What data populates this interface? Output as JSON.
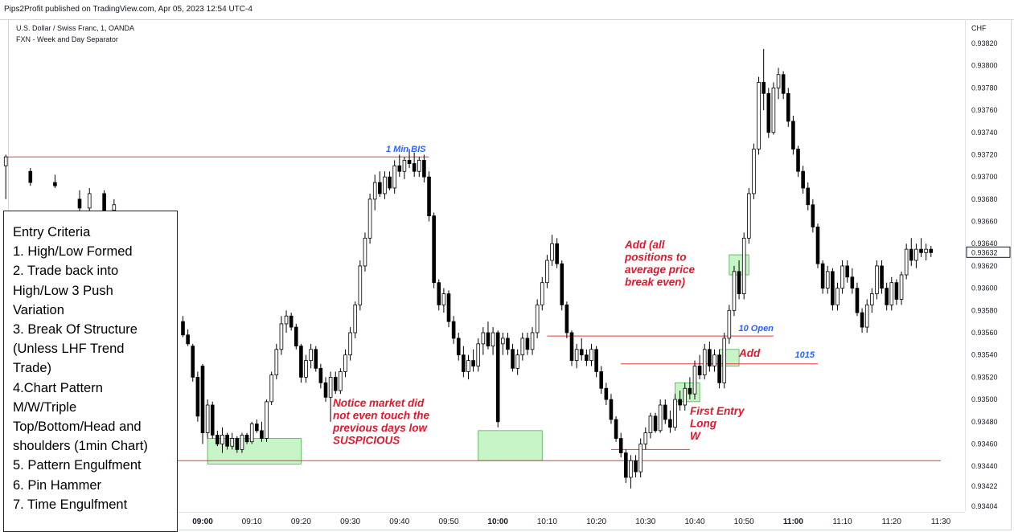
{
  "header": {
    "publisher_text": "Pips2Profit published on TradingView.com, Apr 05, 2023 12:54 UTC-4"
  },
  "chart_info": {
    "symbol_line": "U.S. Dollar / Swiss Franc, 1, OANDA",
    "indicator_line": "FXN - Week and Day Separator"
  },
  "entry_criteria": {
    "lines": [
      "Entry Criteria",
      "1. High/Low Formed",
      "2. Trade back into",
      "High/Low 3 Push",
      "Variation",
      "3. Break Of Structure",
      "(Unless LHF Trend",
      "Trade)",
      "4.Chart Pattern",
      "M/W/Triple",
      "Top/Bottom/Head and",
      "shoulders (1min Chart)",
      "5. Pattern Engulfment",
      "6. Pin Hammer",
      "7. Time Engulfment"
    ]
  },
  "colors": {
    "bull_body": "#ffffff",
    "bear_body": "#000000",
    "wick": "#000000",
    "level_line": "#e53935",
    "zone_fill": "#c8f5c8",
    "zone_border": "#4caf50",
    "annotation_red": "#e0182d",
    "annotation_blue": "#2962ff",
    "price_tag_border": "#131722"
  },
  "chart_data": {
    "type": "candlestick",
    "symbol": "U.S. Dollar / Swiss Franc, 1, OANDA",
    "currency_label": "CHF",
    "price_axis": {
      "ticks": [
        "0.93820",
        "0.93800",
        "0.93780",
        "0.93760",
        "0.93740",
        "0.93720",
        "0.93700",
        "0.93680",
        "0.93660",
        "0.93640",
        "0.93620",
        "0.93600",
        "0.93580",
        "0.93560",
        "0.93540",
        "0.93520",
        "0.93500",
        "0.93480",
        "0.93460",
        "0.93440",
        "0.93422",
        "0.93404"
      ],
      "last_price_label": "0.93632",
      "last_price": 0.93632
    },
    "time_axis": {
      "ticks": [
        "09:00",
        "09:10",
        "09:20",
        "09:30",
        "09:40",
        "09:50",
        "10:00",
        "10:10",
        "10:20",
        "10:30",
        "10:40",
        "10:50",
        "11:00",
        "11:10",
        "11:20",
        "11:30"
      ],
      "bold_ticks": [
        "09:00",
        "10:00",
        "11:00"
      ],
      "first_label_minute": 540,
      "last_label_minute": 690
    },
    "candles": [
      [
        500,
        0.9371,
        0.9372,
        0.9368,
        0.93718
      ],
      [
        505,
        0.93705,
        0.93708,
        0.93692,
        0.93695
      ],
      [
        510,
        0.93695,
        0.93702,
        0.9369,
        0.93692
      ],
      [
        515,
        0.9368,
        0.93688,
        0.93668,
        0.93672
      ],
      [
        517,
        0.93672,
        0.9369,
        0.93668,
        0.93685
      ],
      [
        520,
        0.93685,
        0.93688,
        0.93665,
        0.93668
      ],
      [
        522,
        0.9367,
        0.9368,
        0.9366,
        0.93675
      ],
      [
        530,
        0.93585,
        0.9359,
        0.93565,
        0.9357
      ],
      [
        531,
        0.9357,
        0.93578,
        0.9356,
        0.93565
      ],
      [
        532,
        0.93565,
        0.93572,
        0.9356,
        0.93565
      ],
      [
        534,
        0.9357,
        0.93575,
        0.93558,
        0.9356
      ],
      [
        536,
        0.9357,
        0.93575,
        0.93556,
        0.93558
      ],
      [
        537,
        0.93558,
        0.93563,
        0.93548,
        0.9355
      ],
      [
        538,
        0.93548,
        0.9355,
        0.93516,
        0.9352
      ],
      [
        539,
        0.9352,
        0.93525,
        0.9348,
        0.93485
      ],
      [
        540,
        0.9353,
        0.93532,
        0.9346,
        0.9347
      ],
      [
        541,
        0.9347,
        0.935,
        0.93465,
        0.93495
      ],
      [
        542,
        0.93495,
        0.93498,
        0.93465,
        0.93468
      ],
      [
        543,
        0.93468,
        0.93472,
        0.93458,
        0.9346
      ],
      [
        544,
        0.9346,
        0.93475,
        0.93452,
        0.93468
      ],
      [
        545,
        0.93468,
        0.9347,
        0.93455,
        0.93458
      ],
      [
        546,
        0.93458,
        0.9347,
        0.93455,
        0.93465
      ],
      [
        547,
        0.93465,
        0.93467,
        0.93452,
        0.93455
      ],
      [
        548,
        0.93455,
        0.9347,
        0.93452,
        0.93468
      ],
      [
        549,
        0.93468,
        0.9347,
        0.9346,
        0.93462
      ],
      [
        550,
        0.93462,
        0.9348,
        0.9346,
        0.93478
      ],
      [
        551,
        0.93478,
        0.93482,
        0.9347,
        0.93472
      ],
      [
        552,
        0.93472,
        0.9348,
        0.93462,
        0.93465
      ],
      [
        553,
        0.93465,
        0.935,
        0.93462,
        0.93498
      ],
      [
        554,
        0.93498,
        0.93525,
        0.93495,
        0.93522
      ],
      [
        555,
        0.93522,
        0.9355,
        0.93518,
        0.93545
      ],
      [
        556,
        0.93545,
        0.93575,
        0.9354,
        0.93568
      ],
      [
        557,
        0.93568,
        0.9358,
        0.9356,
        0.93575
      ],
      [
        558,
        0.93575,
        0.93578,
        0.93562,
        0.93565
      ],
      [
        559,
        0.93565,
        0.93568,
        0.93545,
        0.93548
      ],
      [
        560,
        0.93548,
        0.9355,
        0.93515,
        0.9352
      ],
      [
        561,
        0.9352,
        0.9354,
        0.93515,
        0.93535
      ],
      [
        562,
        0.93535,
        0.9355,
        0.93528,
        0.93545
      ],
      [
        563,
        0.93545,
        0.93548,
        0.93525,
        0.93528
      ],
      [
        564,
        0.93528,
        0.93532,
        0.9351,
        0.93515
      ],
      [
        565,
        0.93515,
        0.9352,
        0.93498,
        0.93502
      ],
      [
        566,
        0.93502,
        0.93525,
        0.9348,
        0.9352
      ],
      [
        567,
        0.9352,
        0.93525,
        0.93505,
        0.93508
      ],
      [
        568,
        0.93508,
        0.93528,
        0.93505,
        0.93525
      ],
      [
        569,
        0.93525,
        0.93545,
        0.9352,
        0.9354
      ],
      [
        570,
        0.9354,
        0.93565,
        0.93535,
        0.9356
      ],
      [
        571,
        0.9356,
        0.93588,
        0.93555,
        0.93585
      ],
      [
        572,
        0.93585,
        0.93625,
        0.9358,
        0.9362
      ],
      [
        573,
        0.9362,
        0.9365,
        0.93615,
        0.93645
      ],
      [
        574,
        0.93645,
        0.93685,
        0.9364,
        0.9368
      ],
      [
        575,
        0.9368,
        0.93702,
        0.9367,
        0.93695
      ],
      [
        576,
        0.93695,
        0.93705,
        0.93682,
        0.93685
      ],
      [
        577,
        0.93685,
        0.93705,
        0.9368,
        0.937
      ],
      [
        578,
        0.937,
        0.93705,
        0.93688,
        0.9369
      ],
      [
        579,
        0.9369,
        0.93715,
        0.93685,
        0.9371
      ],
      [
        580,
        0.9371,
        0.9372,
        0.937,
        0.93705
      ],
      [
        581,
        0.93705,
        0.93718,
        0.93698,
        0.93715
      ],
      [
        582,
        0.93715,
        0.93725,
        0.93708,
        0.93712
      ],
      [
        583,
        0.93712,
        0.93722,
        0.937,
        0.93705
      ],
      [
        584,
        0.93705,
        0.93718,
        0.937,
        0.93715
      ],
      [
        585,
        0.93715,
        0.9372,
        0.93695,
        0.937
      ],
      [
        586,
        0.937,
        0.93705,
        0.9366,
        0.93665
      ],
      [
        587,
        0.93665,
        0.93668,
        0.936,
        0.93605
      ],
      [
        588,
        0.93605,
        0.93608,
        0.9358,
        0.93585
      ],
      [
        589,
        0.93585,
        0.936,
        0.93578,
        0.93595
      ],
      [
        590,
        0.93595,
        0.93598,
        0.93565,
        0.9357
      ],
      [
        591,
        0.9357,
        0.93575,
        0.9355,
        0.93555
      ],
      [
        592,
        0.93555,
        0.9356,
        0.93535,
        0.9354
      ],
      [
        593,
        0.9354,
        0.93548,
        0.9352,
        0.93525
      ],
      [
        594,
        0.93525,
        0.9354,
        0.93518,
        0.93535
      ],
      [
        595,
        0.93535,
        0.93545,
        0.93525,
        0.9353
      ],
      [
        596,
        0.9353,
        0.93555,
        0.93525,
        0.9355
      ],
      [
        597,
        0.9355,
        0.93565,
        0.9354,
        0.9356
      ],
      [
        598,
        0.9356,
        0.9357,
        0.93545,
        0.93548
      ],
      [
        599,
        0.93548,
        0.93565,
        0.9354,
        0.9356
      ],
      [
        600,
        0.9356,
        0.93562,
        0.93475,
        0.9348
      ],
      [
        601,
        0.9355,
        0.9356,
        0.9354,
        0.93555
      ],
      [
        602,
        0.93555,
        0.9356,
        0.9354,
        0.93545
      ],
      [
        603,
        0.93545,
        0.9355,
        0.93525,
        0.93528
      ],
      [
        604,
        0.93528,
        0.93545,
        0.93522,
        0.9354
      ],
      [
        605,
        0.9354,
        0.9356,
        0.93535,
        0.93555
      ],
      [
        606,
        0.93555,
        0.9356,
        0.9354,
        0.93545
      ],
      [
        607,
        0.93545,
        0.93565,
        0.9354,
        0.9356
      ],
      [
        608,
        0.9356,
        0.9359,
        0.93555,
        0.93585
      ],
      [
        609,
        0.93585,
        0.9361,
        0.9358,
        0.93605
      ],
      [
        610,
        0.93605,
        0.9363,
        0.936,
        0.93625
      ],
      [
        611,
        0.93625,
        0.93648,
        0.9362,
        0.9364
      ],
      [
        612,
        0.9364,
        0.93645,
        0.93618,
        0.93622
      ],
      [
        613,
        0.93622,
        0.93625,
        0.9358,
        0.93585
      ],
      [
        614,
        0.93585,
        0.93588,
        0.93555,
        0.9356
      ],
      [
        615,
        0.9356,
        0.93562,
        0.9353,
        0.93535
      ],
      [
        616,
        0.93535,
        0.9355,
        0.93528,
        0.93545
      ],
      [
        617,
        0.93545,
        0.93555,
        0.93535,
        0.9354
      ],
      [
        618,
        0.9354,
        0.93545,
        0.9353,
        0.93535
      ],
      [
        619,
        0.93535,
        0.9355,
        0.9353,
        0.93545
      ],
      [
        620,
        0.93545,
        0.93548,
        0.9352,
        0.93525
      ],
      [
        621,
        0.93525,
        0.9353,
        0.93505,
        0.9351
      ],
      [
        622,
        0.9351,
        0.93515,
        0.93495,
        0.935
      ],
      [
        623,
        0.935,
        0.93505,
        0.93478,
        0.93482
      ],
      [
        624,
        0.93482,
        0.93485,
        0.93462,
        0.93465
      ],
      [
        625,
        0.93465,
        0.9347,
        0.93448,
        0.93452
      ],
      [
        626,
        0.93452,
        0.93455,
        0.93425,
        0.9343
      ],
      [
        627,
        0.9343,
        0.9345,
        0.9342,
        0.93445
      ],
      [
        628,
        0.93445,
        0.9345,
        0.9343,
        0.93435
      ],
      [
        629,
        0.93435,
        0.93465,
        0.9343,
        0.9346
      ],
      [
        630,
        0.9346,
        0.93475,
        0.93455,
        0.9347
      ],
      [
        631,
        0.9347,
        0.93488,
        0.93465,
        0.93485
      ],
      [
        632,
        0.93485,
        0.93488,
        0.9347,
        0.93472
      ],
      [
        633,
        0.93472,
        0.935,
        0.9347,
        0.93495
      ],
      [
        634,
        0.93495,
        0.935,
        0.93478,
        0.93482
      ],
      [
        635,
        0.93482,
        0.9349,
        0.9347,
        0.93475
      ],
      [
        636,
        0.93475,
        0.93505,
        0.93472,
        0.935
      ],
      [
        637,
        0.935,
        0.93508,
        0.9349,
        0.93495
      ],
      [
        638,
        0.93495,
        0.93515,
        0.9349,
        0.9351
      ],
      [
        639,
        0.9351,
        0.9352,
        0.935,
        0.93505
      ],
      [
        640,
        0.93505,
        0.93535,
        0.935,
        0.9353
      ],
      [
        641,
        0.9353,
        0.9354,
        0.93518,
        0.93522
      ],
      [
        642,
        0.93522,
        0.9355,
        0.93518,
        0.93545
      ],
      [
        643,
        0.93545,
        0.93552,
        0.93525,
        0.9353
      ],
      [
        644,
        0.9353,
        0.93545,
        0.93525,
        0.9354
      ],
      [
        645,
        0.9354,
        0.93545,
        0.9351,
        0.93515
      ],
      [
        646,
        0.93515,
        0.9356,
        0.9351,
        0.93555
      ],
      [
        647,
        0.93555,
        0.93585,
        0.9355,
        0.9358
      ],
      [
        648,
        0.9358,
        0.9362,
        0.93575,
        0.93615
      ],
      [
        649,
        0.93615,
        0.93625,
        0.9359,
        0.93595
      ],
      [
        650,
        0.93595,
        0.9365,
        0.9359,
        0.93645
      ],
      [
        651,
        0.93645,
        0.9369,
        0.9364,
        0.93685
      ],
      [
        652,
        0.93685,
        0.9373,
        0.9368,
        0.93725
      ],
      [
        653,
        0.93725,
        0.9379,
        0.9372,
        0.93785
      ],
      [
        654,
        0.93785,
        0.93815,
        0.9376,
        0.93775
      ],
      [
        655,
        0.93775,
        0.9378,
        0.93735,
        0.9374
      ],
      [
        656,
        0.9374,
        0.93785,
        0.93738,
        0.9378
      ],
      [
        657,
        0.9378,
        0.93798,
        0.9377,
        0.93792
      ],
      [
        658,
        0.93792,
        0.93795,
        0.9377,
        0.93775
      ],
      [
        659,
        0.93775,
        0.9378,
        0.93745,
        0.9375
      ],
      [
        660,
        0.9375,
        0.93755,
        0.9372,
        0.93725
      ],
      [
        661,
        0.93725,
        0.93728,
        0.937,
        0.93705
      ],
      [
        662,
        0.93705,
        0.9371,
        0.93685,
        0.9369
      ],
      [
        663,
        0.9369,
        0.93695,
        0.9367,
        0.93675
      ],
      [
        664,
        0.93675,
        0.9368,
        0.9365,
        0.93655
      ],
      [
        665,
        0.93655,
        0.93658,
        0.93618,
        0.93622
      ],
      [
        666,
        0.93622,
        0.93625,
        0.93595,
        0.936
      ],
      [
        667,
        0.936,
        0.9362,
        0.93595,
        0.93615
      ],
      [
        668,
        0.93615,
        0.93618,
        0.9358,
        0.93585
      ],
      [
        669,
        0.93585,
        0.93605,
        0.9358,
        0.936
      ],
      [
        670,
        0.936,
        0.93625,
        0.93595,
        0.9362
      ],
      [
        671,
        0.9362,
        0.93625,
        0.93605,
        0.9361
      ],
      [
        672,
        0.9361,
        0.93618,
        0.93595,
        0.936
      ],
      [
        673,
        0.936,
        0.93605,
        0.93575,
        0.93578
      ],
      [
        674,
        0.93578,
        0.93582,
        0.9356,
        0.93565
      ],
      [
        675,
        0.93565,
        0.9359,
        0.9356,
        0.93585
      ],
      [
        676,
        0.93585,
        0.936,
        0.93578,
        0.93595
      ],
      [
        677,
        0.93595,
        0.93625,
        0.9359,
        0.9362
      ],
      [
        678,
        0.9362,
        0.93625,
        0.93595,
        0.936
      ],
      [
        679,
        0.936,
        0.93605,
        0.9358,
        0.93585
      ],
      [
        680,
        0.93585,
        0.9361,
        0.9358,
        0.93605
      ],
      [
        681,
        0.93605,
        0.93608,
        0.93585,
        0.9359
      ],
      [
        682,
        0.9359,
        0.93615,
        0.93585,
        0.93612
      ],
      [
        683,
        0.93612,
        0.9364,
        0.93608,
        0.93635
      ],
      [
        684,
        0.93635,
        0.93645,
        0.9362,
        0.93625
      ],
      [
        685,
        0.93625,
        0.9364,
        0.93618,
        0.93635
      ],
      [
        686,
        0.93635,
        0.93645,
        0.93628,
        0.93632
      ],
      [
        687,
        0.93632,
        0.9364,
        0.93625,
        0.93635
      ],
      [
        688,
        0.93635,
        0.93638,
        0.93628,
        0.93632
      ]
    ],
    "levels": [
      {
        "price": 0.93718,
        "from_minute": 500,
        "to_minute": 586,
        "label": "1 Min BIS",
        "label_color": "annotation_blue"
      },
      {
        "price": 0.93557,
        "from_minute": 610,
        "to_minute": 656,
        "label": "10 Open",
        "label_color": "annotation_blue"
      },
      {
        "price": 0.93532,
        "from_minute": 625,
        "to_minute": 665,
        "label": "1015",
        "label_color": "annotation_blue"
      },
      {
        "price": 0.93445,
        "from_minute": 505,
        "to_minute": 690,
        "label": ""
      },
      {
        "price": 0.93455,
        "from_minute": 623,
        "to_minute": 639,
        "label": ""
      }
    ],
    "zones": [
      {
        "from_minute": 541,
        "to_minute": 560,
        "top": 0.93465,
        "bottom": 0.93442
      },
      {
        "from_minute": 596,
        "to_minute": 609,
        "top": 0.93472,
        "bottom": 0.93445
      },
      {
        "from_minute": 636,
        "to_minute": 641,
        "top": 0.93515,
        "bottom": 0.93498
      },
      {
        "from_minute": 645,
        "to_minute": 649,
        "top": 0.93545,
        "bottom": 0.9353
      },
      {
        "from_minute": 647,
        "to_minute": 651,
        "top": 0.9363,
        "bottom": 0.93612
      }
    ],
    "annotations": [
      {
        "id": "market-note",
        "lines": [
          "Notice market did",
          "not even touch the",
          "previous days low",
          "SUSPICIOUS"
        ],
        "color": "annotation_red"
      },
      {
        "id": "add-all-note",
        "lines": [
          "Add (all",
          "positions to",
          "average price",
          "break even)"
        ],
        "color": "annotation_red"
      },
      {
        "id": "add-note",
        "lines": [
          "Add"
        ],
        "color": "annotation_red"
      },
      {
        "id": "first-entry-note",
        "lines": [
          "First Entry",
          "Long",
          "W"
        ],
        "color": "annotation_red"
      }
    ]
  }
}
